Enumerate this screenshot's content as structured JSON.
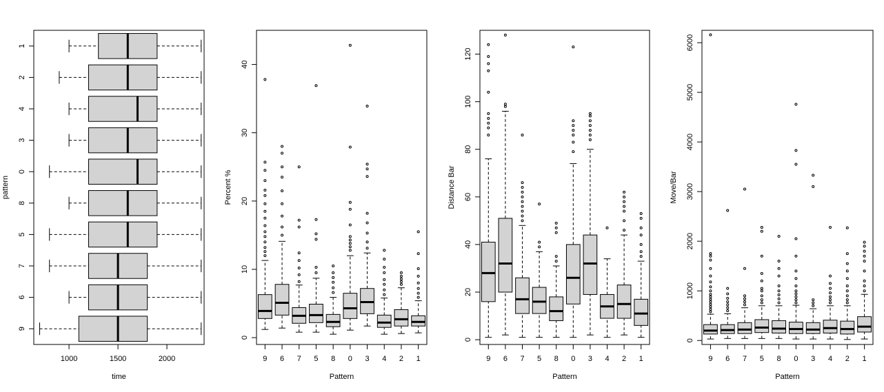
{
  "colors": {
    "box_fill": "#d3d3d3",
    "stroke": "#000000",
    "background": "#ffffff"
  },
  "chart_data": [
    {
      "type": "boxplot",
      "orientation": "horizontal",
      "xlabel": "time",
      "ylabel": "pattern",
      "xlim": [
        640,
        2380
      ],
      "xticks": [
        1000,
        1500,
        2000
      ],
      "categories": [
        "1",
        "2",
        "4",
        "3",
        "0",
        "8",
        "5",
        "7",
        "6",
        "9"
      ],
      "boxes": [
        {
          "label": "1",
          "whisker_low": 1000,
          "q1": 1300,
          "median": 1600,
          "q3": 1900,
          "whisker_high": 2350,
          "outliers": []
        },
        {
          "label": "2",
          "whisker_low": 900,
          "q1": 1200,
          "median": 1600,
          "q3": 1900,
          "whisker_high": 2350,
          "outliers": []
        },
        {
          "label": "4",
          "whisker_low": 1000,
          "q1": 1200,
          "median": 1700,
          "q3": 1900,
          "whisker_high": 2350,
          "outliers": []
        },
        {
          "label": "3",
          "whisker_low": 1000,
          "q1": 1200,
          "median": 1600,
          "q3": 1900,
          "whisker_high": 2350,
          "outliers": []
        },
        {
          "label": "0",
          "whisker_low": 800,
          "q1": 1200,
          "median": 1700,
          "q3": 1900,
          "whisker_high": 2350,
          "outliers": []
        },
        {
          "label": "8",
          "whisker_low": 1000,
          "q1": 1200,
          "median": 1600,
          "q3": 1900,
          "whisker_high": 2350,
          "outliers": []
        },
        {
          "label": "5",
          "whisker_low": 800,
          "q1": 1200,
          "median": 1600,
          "q3": 1900,
          "whisker_high": 2350,
          "outliers": []
        },
        {
          "label": "7",
          "whisker_low": 800,
          "q1": 1200,
          "median": 1500,
          "q3": 1800,
          "whisker_high": 2350,
          "outliers": []
        },
        {
          "label": "6",
          "whisker_low": 1000,
          "q1": 1200,
          "median": 1500,
          "q3": 1800,
          "whisker_high": 2350,
          "outliers": []
        },
        {
          "label": "9",
          "whisker_low": 700,
          "q1": 1100,
          "median": 1500,
          "q3": 1800,
          "whisker_high": 2350,
          "outliers": []
        }
      ]
    },
    {
      "type": "boxplot",
      "orientation": "vertical",
      "xlabel": "Pattern",
      "ylabel": "Percent %",
      "ylim": [
        -1,
        45
      ],
      "yticks": [
        0,
        10,
        20,
        30,
        40
      ],
      "categories": [
        "9",
        "6",
        "7",
        "5",
        "8",
        "0",
        "3",
        "4",
        "2",
        "1"
      ],
      "boxes": [
        {
          "label": "9",
          "whisker_low": 1.2,
          "q1": 2.8,
          "median": 3.9,
          "q3": 6.3,
          "whisker_high": 11.3,
          "outliers": [
            12,
            12.6,
            13.2,
            14,
            14.8,
            15.5,
            16.4,
            17.5,
            18.5,
            19.6,
            20.8,
            21.6,
            23,
            24.5,
            25.7,
            37.8
          ]
        },
        {
          "label": "6",
          "whisker_low": 1.4,
          "q1": 3.3,
          "median": 5.1,
          "q3": 7.8,
          "whisker_high": 14.1,
          "outliers": [
            15,
            16.2,
            17.8,
            19.6,
            21.5,
            23.5,
            25,
            27,
            28
          ]
        },
        {
          "label": "7",
          "whisker_low": 0.8,
          "q1": 2.1,
          "median": 3.2,
          "q3": 4.4,
          "whisker_high": 7.7,
          "outliers": [
            8.2,
            9.2,
            10.2,
            11.3,
            12.4,
            16.2,
            17.2,
            25
          ]
        },
        {
          "label": "5",
          "whisker_low": 0.8,
          "q1": 2.2,
          "median": 3.3,
          "q3": 4.9,
          "whisker_high": 8.7,
          "outliers": [
            9.5,
            10.3,
            14.4,
            15.2,
            17.3,
            36.9
          ]
        },
        {
          "label": "8",
          "whisker_low": 0.5,
          "q1": 1.6,
          "median": 2.3,
          "q3": 3.4,
          "whisker_high": 5.9,
          "outliers": [
            6.6,
            7.3,
            8.1,
            8.8,
            9.5,
            10.5
          ]
        },
        {
          "label": "0",
          "whisker_low": 1.1,
          "q1": 2.8,
          "median": 4.3,
          "q3": 6.5,
          "whisker_high": 12,
          "outliers": [
            12.8,
            13.3,
            13.8,
            14.3,
            14.8,
            16.5,
            18.8,
            19.8,
            27.9,
            42.8
          ]
        },
        {
          "label": "3",
          "whisker_low": 1.7,
          "q1": 3.5,
          "median": 5.2,
          "q3": 7.2,
          "whisker_high": 12.4,
          "outliers": [
            13.1,
            14,
            15.3,
            16.8,
            18.2,
            23.6,
            24.7,
            25.4,
            33.9
          ]
        },
        {
          "label": "4",
          "whisker_low": 0.5,
          "q1": 1.5,
          "median": 2.2,
          "q3": 3.3,
          "whisker_high": 5.8,
          "outliers": [
            6.3,
            7,
            7.8,
            8.5,
            9.5,
            10.3,
            11.5,
            12.8
          ]
        },
        {
          "label": "2",
          "whisker_low": 0.6,
          "q1": 1.7,
          "median": 2.7,
          "q3": 4.1,
          "whisker_high": 7.3,
          "outliers": [
            7.8,
            8.2,
            8.6,
            9,
            9.5
          ]
        },
        {
          "label": "1",
          "whisker_low": 0.7,
          "q1": 1.7,
          "median": 2.3,
          "q3": 3.2,
          "whisker_high": 5.4,
          "outliers": [
            5.9,
            6.5,
            7.2,
            8,
            9,
            10.1,
            12.3,
            15.5
          ]
        }
      ]
    },
    {
      "type": "boxplot",
      "orientation": "vertical",
      "xlabel": "Pattern",
      "ylabel": "Distance Bar",
      "ylim": [
        -2,
        130
      ],
      "yticks": [
        0,
        20,
        40,
        60,
        80,
        100,
        120
      ],
      "categories": [
        "9",
        "6",
        "7",
        "5",
        "8",
        "0",
        "3",
        "4",
        "2",
        "1"
      ],
      "boxes": [
        {
          "label": "9",
          "whisker_low": 1,
          "q1": 16,
          "median": 28,
          "q3": 41,
          "whisker_high": 76,
          "outliers": [
            86,
            89,
            91,
            93,
            95,
            104,
            113,
            116,
            119,
            124
          ]
        },
        {
          "label": "6",
          "whisker_low": 2,
          "q1": 20,
          "median": 32,
          "q3": 51,
          "whisker_high": 96,
          "outliers": [
            98,
            99,
            128
          ]
        },
        {
          "label": "7",
          "whisker_low": 1,
          "q1": 11,
          "median": 17,
          "q3": 26,
          "whisker_high": 48,
          "outliers": [
            50,
            52,
            54,
            56,
            58,
            60,
            62,
            64,
            66,
            86
          ]
        },
        {
          "label": "5",
          "whisker_low": 1,
          "q1": 11,
          "median": 16,
          "q3": 22,
          "whisker_high": 37,
          "outliers": [
            39,
            41,
            57
          ]
        },
        {
          "label": "8",
          "whisker_low": 1,
          "q1": 8,
          "median": 12,
          "q3": 18,
          "whisker_high": 31,
          "outliers": [
            33,
            35,
            45,
            47,
            49
          ]
        },
        {
          "label": "0",
          "whisker_low": 1,
          "q1": 15,
          "median": 26,
          "q3": 40,
          "whisker_high": 74,
          "outliers": [
            79,
            83,
            86,
            88,
            90,
            92,
            123
          ]
        },
        {
          "label": "3",
          "whisker_low": 2,
          "q1": 19,
          "median": 32,
          "q3": 44,
          "whisker_high": 80,
          "outliers": [
            84,
            86,
            88,
            90,
            92,
            94,
            95
          ]
        },
        {
          "label": "4",
          "whisker_low": 1,
          "q1": 9,
          "median": 14,
          "q3": 19,
          "whisker_high": 34,
          "outliers": [
            47
          ]
        },
        {
          "label": "2",
          "whisker_low": 2,
          "q1": 9,
          "median": 15,
          "q3": 23,
          "whisker_high": 44,
          "outliers": [
            46,
            50,
            54,
            56,
            58,
            60,
            62
          ]
        },
        {
          "label": "1",
          "whisker_low": 1,
          "q1": 6,
          "median": 11,
          "q3": 17,
          "whisker_high": 33,
          "outliers": [
            35,
            37,
            40,
            44,
            47,
            51,
            53
          ]
        }
      ]
    },
    {
      "type": "boxplot",
      "orientation": "vertical",
      "xlabel": "Pattern",
      "ylabel": "Move/Bar",
      "ylim": [
        -80,
        6250
      ],
      "yticks": [
        0,
        1000,
        2000,
        3000,
        4000,
        5000,
        6000
      ],
      "categories": [
        "9",
        "6",
        "7",
        "5",
        "8",
        "0",
        "3",
        "4",
        "2",
        "1"
      ],
      "boxes": [
        {
          "label": "9",
          "whisker_low": 30,
          "q1": 130,
          "median": 200,
          "q3": 320,
          "whisker_high": 530,
          "outliers": [
            580,
            630,
            680,
            730,
            780,
            830,
            880,
            930,
            1000,
            1080,
            1180,
            1300,
            1450,
            1620,
            1700,
            1750,
            6160
          ]
        },
        {
          "label": "6",
          "whisker_low": 40,
          "q1": 140,
          "median": 210,
          "q3": 320,
          "whisker_high": 540,
          "outliers": [
            600,
            660,
            720,
            780,
            850,
            940,
            1050,
            2620
          ]
        },
        {
          "label": "7",
          "whisker_low": 40,
          "q1": 140,
          "median": 220,
          "q3": 360,
          "whisker_high": 660,
          "outliers": [
            720,
            780,
            840,
            900,
            1450,
            3050
          ]
        },
        {
          "label": "5",
          "whisker_low": 40,
          "q1": 160,
          "median": 260,
          "q3": 420,
          "whisker_high": 700,
          "outliers": [
            760,
            820,
            900,
            1000,
            1050,
            1200,
            1350,
            1700,
            2200,
            2280
          ]
        },
        {
          "label": "8",
          "whisker_low": 40,
          "q1": 150,
          "median": 240,
          "q3": 400,
          "whisker_high": 700,
          "outliers": [
            760,
            840,
            920,
            1000,
            1100,
            1300,
            1450,
            1600,
            2100
          ]
        },
        {
          "label": "0",
          "whisker_low": 30,
          "q1": 140,
          "median": 230,
          "q3": 370,
          "whisker_high": 710,
          "outliers": [
            760,
            820,
            880,
            940,
            1000,
            1100,
            1250,
            1400,
            1700,
            2050,
            3550,
            3830,
            4760
          ]
        },
        {
          "label": "3",
          "whisker_low": 30,
          "q1": 140,
          "median": 220,
          "q3": 360,
          "whisker_high": 640,
          "outliers": [
            700,
            760,
            820,
            3100,
            3330
          ]
        },
        {
          "label": "4",
          "whisker_low": 30,
          "q1": 150,
          "median": 250,
          "q3": 410,
          "whisker_high": 700,
          "outliers": [
            760,
            820,
            880,
            960,
            1050,
            1150,
            1300,
            2280
          ]
        },
        {
          "label": "2",
          "whisker_low": 20,
          "q1": 130,
          "median": 230,
          "q3": 390,
          "whisker_high": 700,
          "outliers": [
            760,
            820,
            900,
            1000,
            1100,
            1250,
            1400,
            1550,
            1750,
            2270
          ]
        },
        {
          "label": "1",
          "whisker_low": 30,
          "q1": 170,
          "median": 280,
          "q3": 480,
          "whisker_high": 930,
          "outliers": [
            1000,
            1100,
            1200,
            1400,
            1600,
            1700,
            1800,
            1900,
            1980
          ]
        }
      ]
    }
  ]
}
